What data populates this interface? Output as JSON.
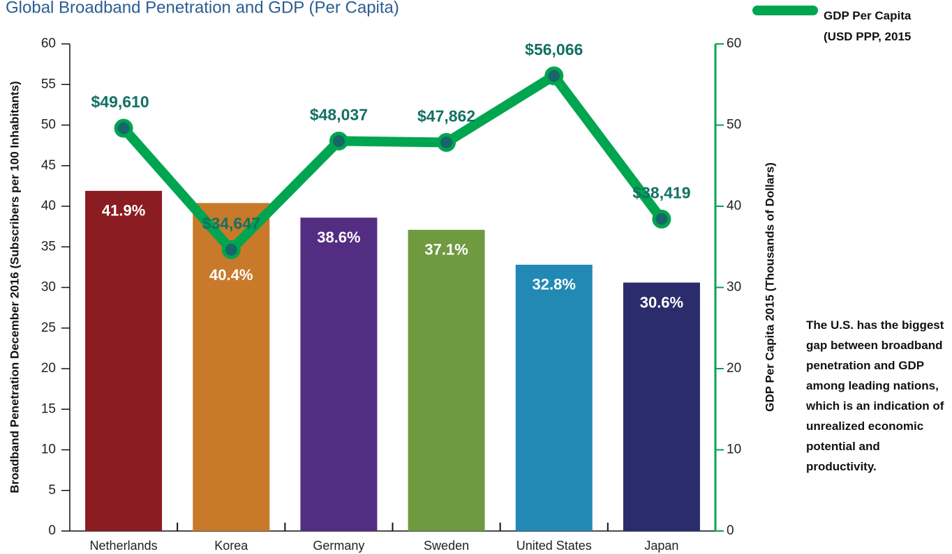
{
  "chart_data": {
    "type": "bar",
    "title": "Global Broadband Penetration and GDP (Per Capita)",
    "ylabel": "Broadband Penetration December 2016 (Subscribers per 100 Inhabitants)",
    "y2label": "GDP Per Capita 2015 (Thousands of Dollars)",
    "annotation": "The U.S. has the biggest gap between broadband penetration and GDP among leading nations, which is an indication of unrealized economic potential and productivity.",
    "categories": [
      "Netherlands",
      "Korea",
      "Germany",
      "Sweden",
      "United States",
      "Japan"
    ],
    "series": [
      {
        "type": "bar",
        "colors": [
          "#8b1c22",
          "#c8792a",
          "#532d82",
          "#6f9a40",
          "#2189b4",
          "#2a2c6b"
        ],
        "values": [
          41.9,
          40.4,
          38.6,
          37.1,
          32.8,
          30.6
        ],
        "value_labels": [
          "41.9%",
          "40.4%",
          "38.6%",
          "37.1%",
          "32.8%",
          "30.6%"
        ]
      },
      {
        "type": "line",
        "axis": "y2",
        "name": "GDP Per Capita (USD PPP, 2015",
        "color": "#00a54f",
        "values": [
          49.61,
          34.647,
          48.037,
          47.862,
          56.066,
          38.419
        ],
        "value_labels": [
          "$49,610",
          "$34,647",
          "$48,037",
          "$47,862",
          "$56,066",
          "$38,419"
        ]
      }
    ],
    "ylim": [
      0,
      60
    ],
    "yticks": [
      0,
      5,
      10,
      15,
      20,
      25,
      30,
      35,
      40,
      45,
      50,
      55,
      60
    ],
    "y2lim": [
      0,
      60
    ],
    "y2ticks": [
      0,
      10,
      20,
      30,
      40,
      50,
      60
    ],
    "legend": "top-right"
  }
}
